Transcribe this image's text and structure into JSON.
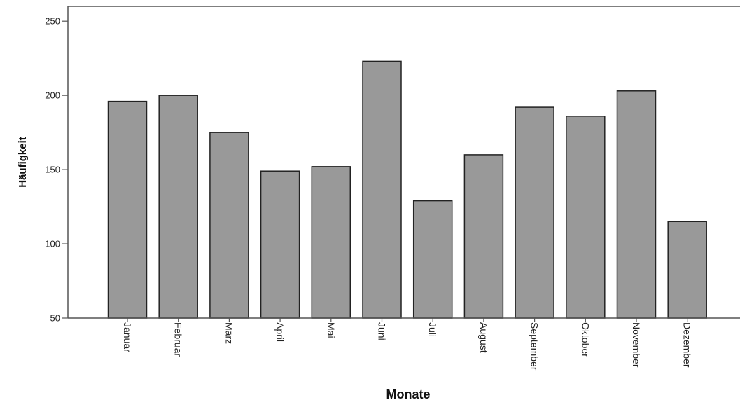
{
  "chart_data": {
    "type": "bar",
    "title": "",
    "xlabel": "Monate",
    "ylabel": "Häufigkeit",
    "categories": [
      "Januar",
      "Februar",
      "März",
      "April",
      "Mai",
      "Juni",
      "Juli",
      "August",
      "September",
      "Oktober",
      "November",
      "Dezember"
    ],
    "values": [
      196,
      200,
      175,
      149,
      152,
      223,
      129,
      160,
      192,
      186,
      203,
      115
    ],
    "ylim": [
      50,
      260
    ],
    "yticks": [
      50,
      100,
      150,
      200,
      250
    ],
    "grid": false,
    "colors": {
      "bar_fill": "#999999",
      "bar_stroke": "#222222",
      "axis": "#555555"
    }
  }
}
